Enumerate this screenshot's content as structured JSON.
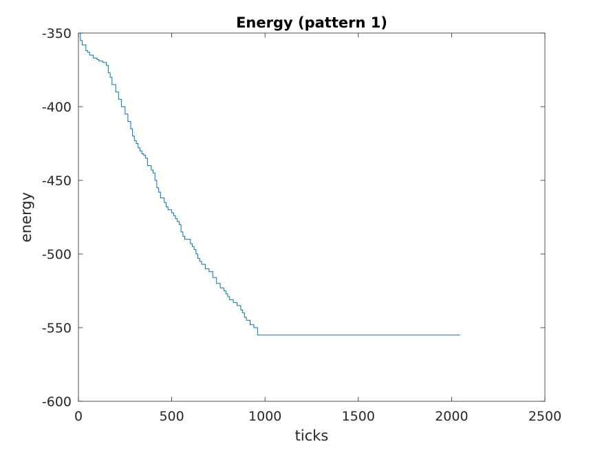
{
  "chart_data": {
    "type": "line",
    "title": "Energy (pattern 1)",
    "xlabel": "ticks",
    "ylabel": "energy",
    "xlim": [
      0,
      2500
    ],
    "ylim": [
      -600,
      -350
    ],
    "xticks": [
      0,
      500,
      1000,
      1500,
      2000,
      2500
    ],
    "yticks": [
      -350,
      -400,
      -450,
      -500,
      -550,
      -600
    ],
    "xtick_labels": [
      "0",
      "500",
      "1000",
      "1500",
      "2000",
      "2500"
    ],
    "ytick_labels": [
      "-350",
      "-400",
      "-450",
      "-500",
      "-550",
      "-600"
    ],
    "grid": false,
    "box": true,
    "line_style": "stairs",
    "series": [
      {
        "color": "#0072BD",
        "x": [
          0,
          10,
          20,
          40,
          50,
          60,
          80,
          100,
          110,
          130,
          150,
          160,
          170,
          180,
          200,
          215,
          230,
          250,
          265,
          280,
          290,
          300,
          310,
          320,
          330,
          340,
          350,
          360,
          370,
          390,
          400,
          410,
          420,
          430,
          440,
          460,
          470,
          480,
          500,
          510,
          520,
          530,
          540,
          550,
          560,
          570,
          600,
          610,
          620,
          630,
          640,
          650,
          660,
          680,
          700,
          720,
          740,
          760,
          780,
          790,
          800,
          810,
          830,
          850,
          870,
          880,
          890,
          900,
          920,
          940,
          960,
          970,
          980,
          990,
          1000,
          1010,
          1025,
          2045
        ],
        "y": [
          -350,
          -355,
          -358,
          -362,
          -363,
          -365,
          -367,
          -368,
          -369,
          -370,
          -372,
          -377,
          -380,
          -385,
          -390,
          -395,
          -400,
          -405,
          -410,
          -415,
          -420,
          -423,
          -425,
          -428,
          -430,
          -432,
          -433,
          -435,
          -440,
          -443,
          -445,
          -450,
          -455,
          -458,
          -462,
          -465,
          -468,
          -470,
          -472,
          -474,
          -476,
          -478,
          -480,
          -485,
          -488,
          -490,
          -493,
          -495,
          -497,
          -500,
          -503,
          -505,
          -507,
          -510,
          -512,
          -516,
          -520,
          -523,
          -525,
          -527,
          -529,
          -531,
          -533,
          -535,
          -538,
          -540,
          -543,
          -545,
          -548,
          -550,
          -555,
          -555,
          -555,
          -555,
          -555,
          -555,
          -555,
          -555
        ]
      }
    ]
  }
}
